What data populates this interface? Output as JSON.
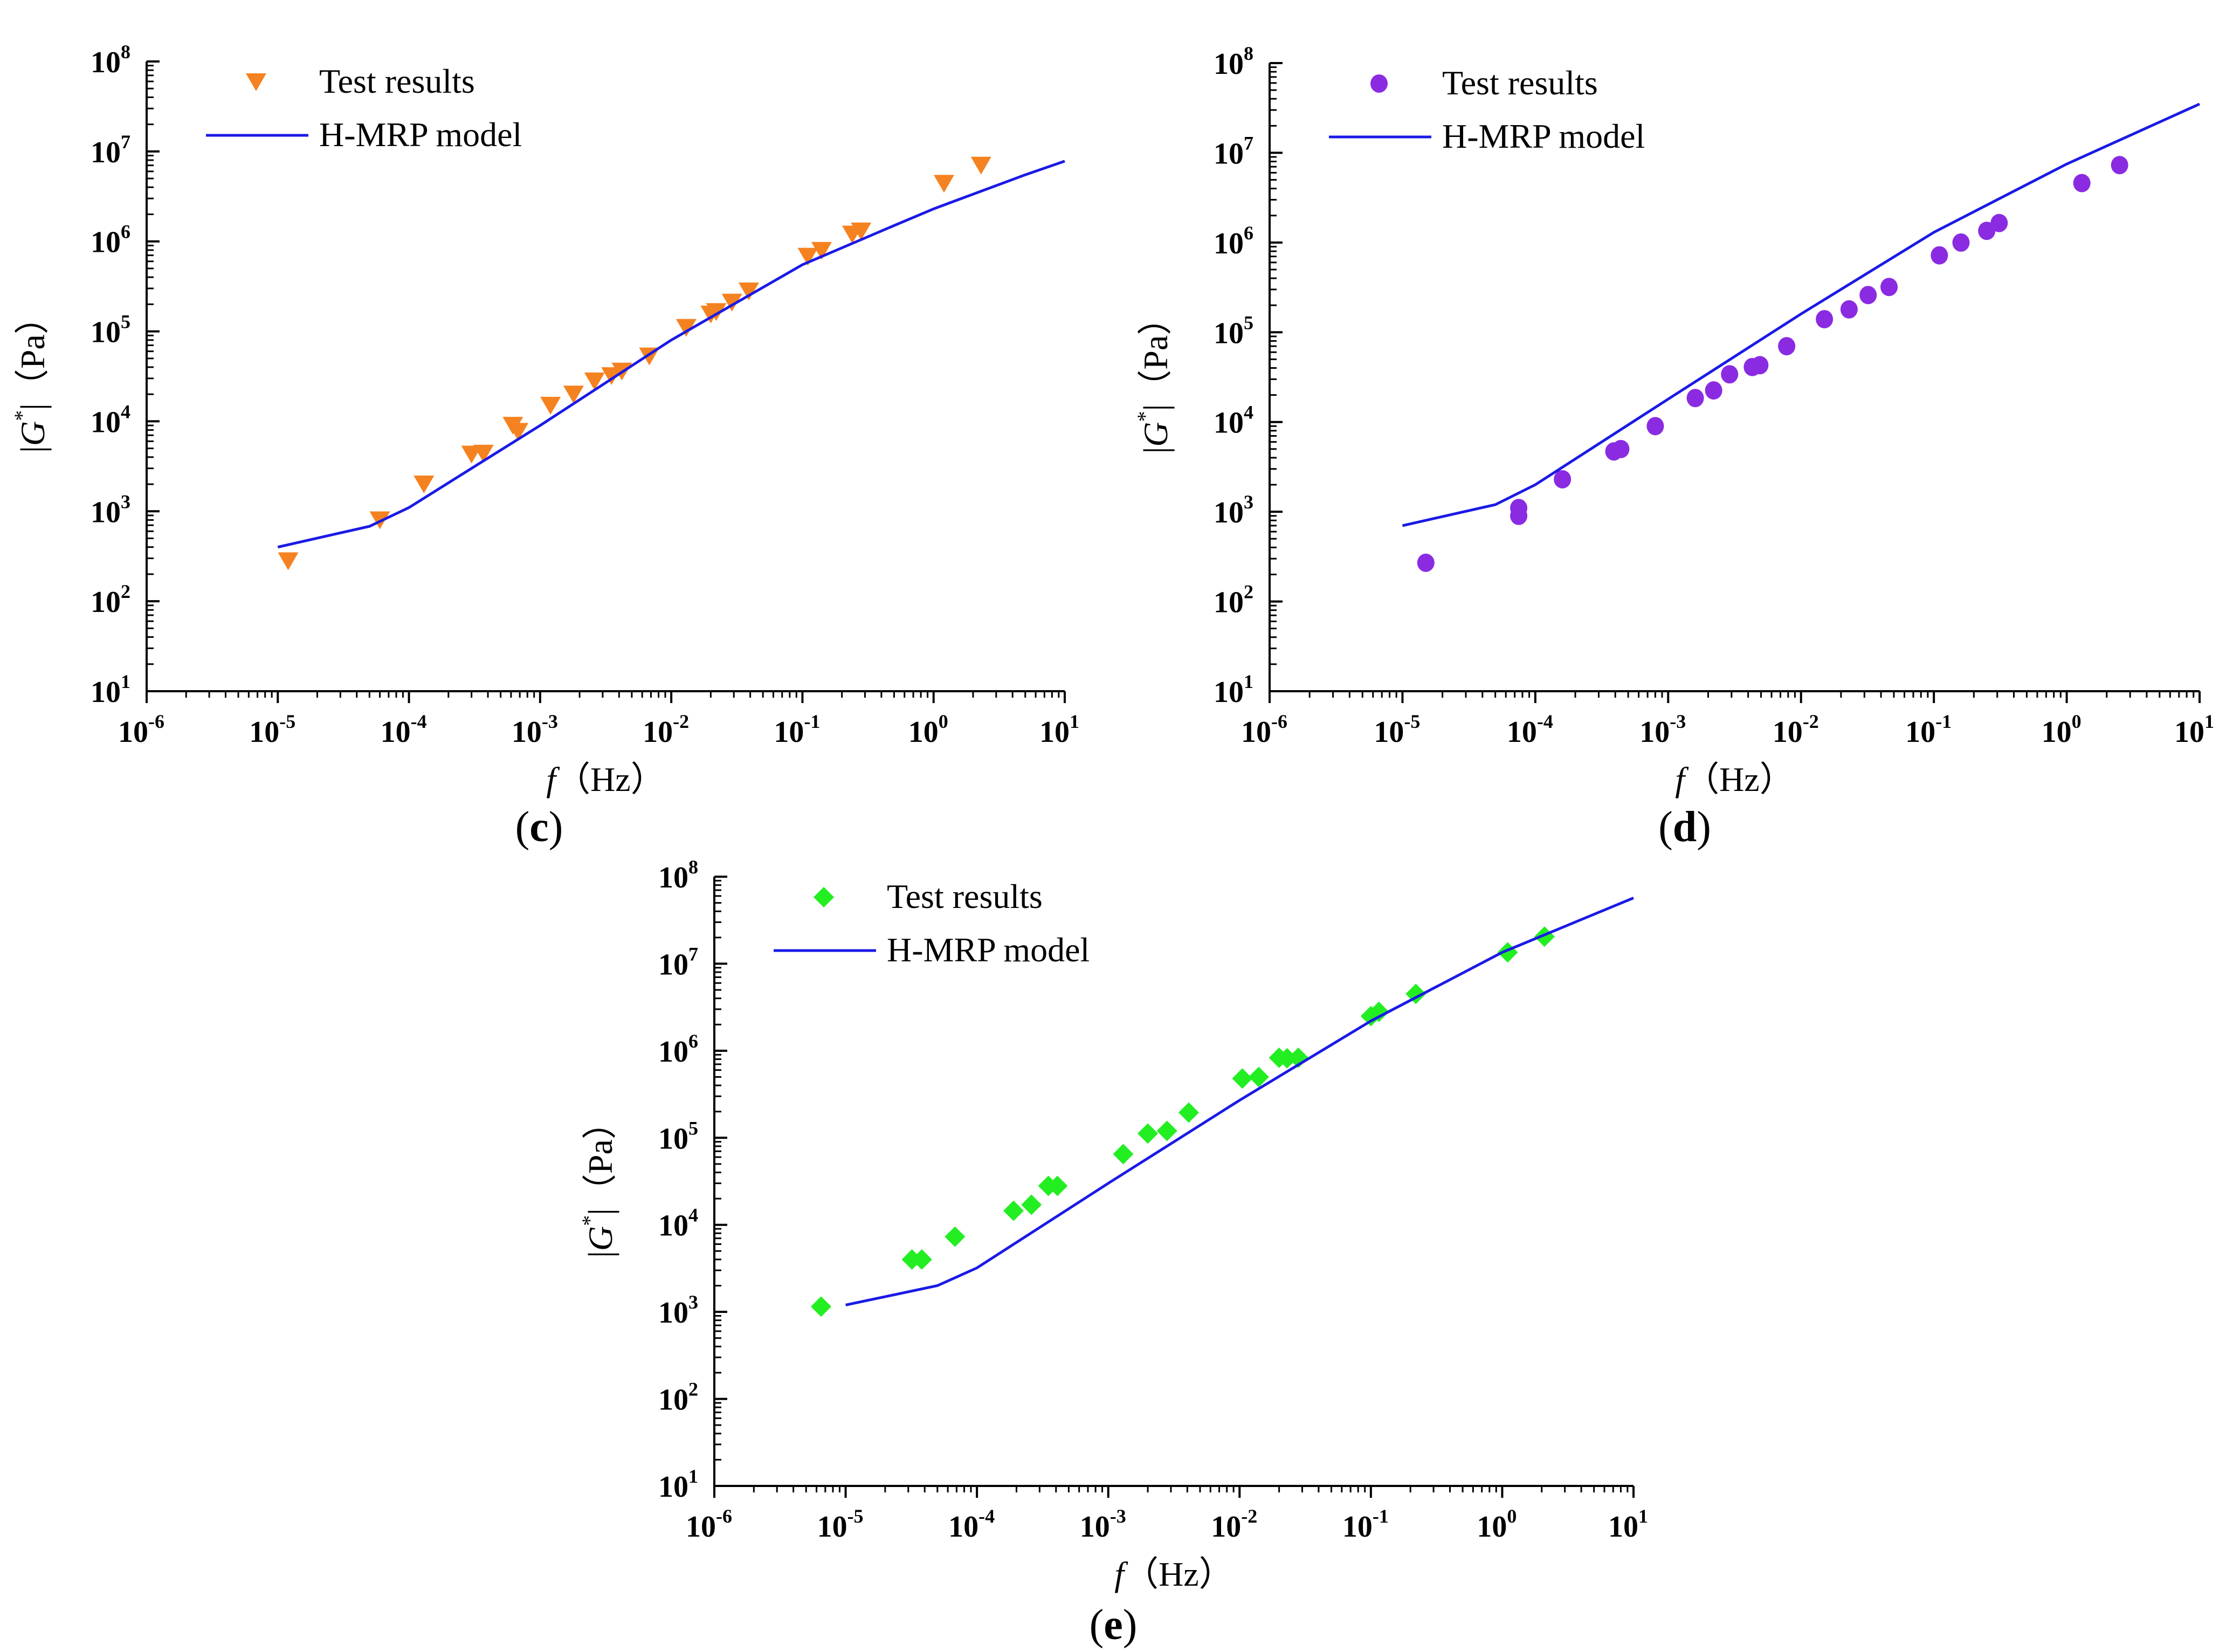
{
  "figure": {
    "panels": [
      "(c)",
      "(d)",
      "(e)"
    ]
  },
  "chart_data": [
    {
      "id": "c",
      "type": "scatter",
      "panel_label": "(c)",
      "title": "",
      "xlabel": "f（Hz）",
      "ylabel": "|G*|（Pa）",
      "xscale": "log",
      "yscale": "log",
      "xlim": [
        1e-06,
        10
      ],
      "ylim": [
        10,
        100000000.0
      ],
      "x_tick_exponents": [
        -6,
        -5,
        -4,
        -3,
        -2,
        -1,
        0,
        1
      ],
      "x_tick_labels": [
        "10-6",
        "10-5",
        "10-4",
        "10-3",
        "10-2",
        "10-1",
        "100",
        "101"
      ],
      "y_tick_exponents": [
        1,
        2,
        3,
        4,
        5,
        6,
        7,
        8
      ],
      "y_tick_labels": [
        "101",
        "102",
        "103",
        "104",
        "105",
        "106",
        "107",
        "108"
      ],
      "legend_position": "top-left",
      "series": [
        {
          "name": "Test results",
          "kind": "scatter",
          "marker": "triangle-down",
          "color": "#F58220",
          "x": [
            1.2e-05,
            6e-05,
            0.00013,
            0.0003,
            0.00037,
            0.00062,
            0.00068,
            0.0012,
            0.0018,
            0.0026,
            0.0035,
            0.0042,
            0.0068,
            0.013,
            0.02,
            0.022,
            0.029,
            0.039,
            0.11,
            0.14,
            0.24,
            0.28,
            1.2,
            2.3
          ],
          "y": [
            280,
            800,
            2000,
            4300,
            4400,
            9000,
            7700,
            15000,
            20000,
            28000,
            32000,
            36000,
            53000,
            110000,
            155000,
            165000,
            210000,
            280000,
            680000,
            790000,
            1200000,
            1300000,
            4400000,
            7000000
          ]
        },
        {
          "name": "H-MRP model",
          "kind": "line",
          "color": "#1A1AE6",
          "x": [
            1e-05,
            5e-05,
            0.0001,
            0.0003,
            0.001,
            0.01,
            0.1,
            0.5,
            1,
            5,
            10
          ],
          "y": [
            400,
            680,
            1100,
            3000,
            9000,
            80000,
            550000,
            1500000,
            2300000,
            5500000,
            7800000
          ]
        }
      ]
    },
    {
      "id": "d",
      "type": "scatter",
      "panel_label": "(d)",
      "title": "",
      "xlabel": "f（Hz）",
      "ylabel": "|G*|（Pa）",
      "xscale": "log",
      "yscale": "log",
      "xlim": [
        1e-06,
        10
      ],
      "ylim": [
        10,
        100000000.0
      ],
      "x_tick_exponents": [
        -6,
        -5,
        -4,
        -3,
        -2,
        -1,
        0,
        1
      ],
      "x_tick_labels": [
        "10-6",
        "10-5",
        "10-4",
        "10-3",
        "10-2",
        "10-1",
        "100",
        "101"
      ],
      "y_tick_exponents": [
        1,
        2,
        3,
        4,
        5,
        6,
        7,
        8
      ],
      "y_tick_labels": [
        "101",
        "102",
        "103",
        "104",
        "105",
        "106",
        "107",
        "108"
      ],
      "legend_position": "top-left",
      "series": [
        {
          "name": "Test results",
          "kind": "scatter",
          "marker": "circle",
          "color": "#8A2BE2",
          "x": [
            1.5e-05,
            7.5e-05,
            7.5e-05,
            0.00016,
            0.00039,
            0.00044,
            0.0008,
            0.0016,
            0.0022,
            0.0029,
            0.0043,
            0.0049,
            0.0078,
            0.015,
            0.023,
            0.032,
            0.046,
            0.11,
            0.16,
            0.25,
            0.31,
            1.3,
            2.5
          ],
          "y": [
            270,
            1100,
            900,
            2300,
            4700,
            5000,
            9000,
            18500,
            22500,
            34000,
            41000,
            43000,
            70000,
            140000,
            180000,
            260000,
            320000,
            720000,
            1000000,
            1350000,
            1650000,
            4600000,
            7300000
          ]
        },
        {
          "name": "H-MRP model",
          "kind": "line",
          "color": "#1A1AE6",
          "x": [
            1e-05,
            5e-05,
            0.0001,
            0.001,
            0.01,
            0.1,
            1,
            10
          ],
          "y": [
            700,
            1200,
            2000,
            18000,
            160000,
            1300000,
            7500000,
            35000000
          ]
        }
      ]
    },
    {
      "id": "e",
      "type": "scatter",
      "panel_label": "(e)",
      "title": "",
      "xlabel": "f（Hz）",
      "ylabel": "|G*|（Pa）",
      "xscale": "log",
      "yscale": "log",
      "xlim": [
        1e-06,
        10
      ],
      "ylim": [
        10,
        100000000.0
      ],
      "x_tick_exponents": [
        -6,
        -5,
        -4,
        -3,
        -2,
        -1,
        0,
        1
      ],
      "x_tick_labels": [
        "10-6",
        "10-5",
        "10-4",
        "10-3",
        "10-2",
        "10-1",
        "100",
        "101"
      ],
      "y_tick_exponents": [
        1,
        2,
        3,
        4,
        5,
        6,
        7,
        8
      ],
      "y_tick_labels": [
        "101",
        "102",
        "103",
        "104",
        "105",
        "106",
        "107",
        "108"
      ],
      "legend_position": "top-left",
      "series": [
        {
          "name": "Test results",
          "kind": "scatter",
          "marker": "diamond",
          "color": "#22EE22",
          "x": [
            6.5e-06,
            3.2e-05,
            3.8e-05,
            6.8e-05,
            0.00019,
            0.00026,
            0.00035,
            0.00041,
            0.0013,
            0.002,
            0.0028,
            0.0041,
            0.0105,
            0.014,
            0.02,
            0.023,
            0.028,
            0.1,
            0.115,
            0.22,
            1.1,
            2.1
          ],
          "y": [
            1150,
            4000,
            4000,
            7300,
            14500,
            17000,
            28000,
            28000,
            65000,
            112000,
            120000,
            195000,
            480000,
            500000,
            830000,
            820000,
            830000,
            2500000,
            2800000,
            4500000,
            13500000,
            20500000
          ]
        },
        {
          "name": "H-MRP model",
          "kind": "line",
          "color": "#1A1AE6",
          "x": [
            1e-05,
            5e-05,
            0.0001,
            0.001,
            0.01,
            0.1,
            1,
            10
          ],
          "y": [
            1200,
            2000,
            3200,
            30000,
            270000,
            2200000,
            13500000,
            57000000
          ]
        }
      ]
    }
  ]
}
